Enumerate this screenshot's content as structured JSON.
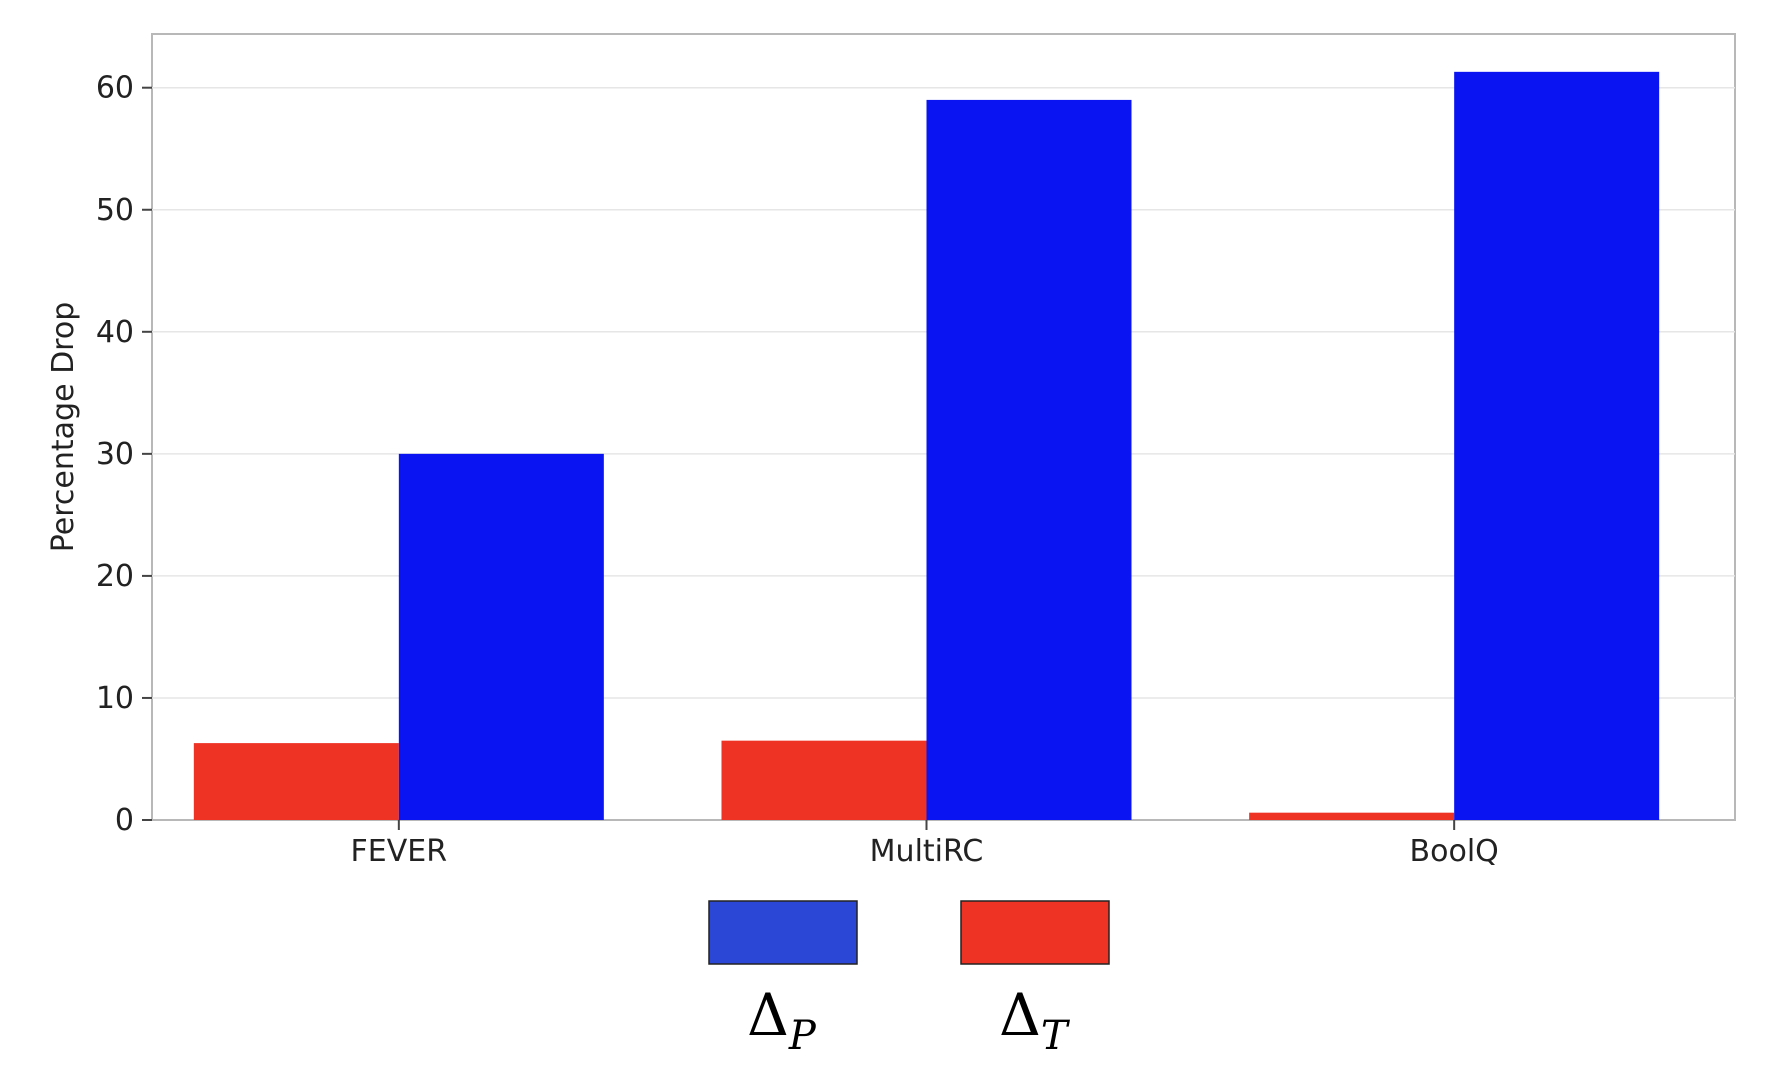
{
  "chart_data": {
    "type": "bar",
    "categories": [
      "FEVER",
      "MultiRC",
      "BoolQ"
    ],
    "series": [
      {
        "name_symbol": "Δ",
        "name_subscript": "T",
        "color": "#ee3224",
        "values": [
          6.3,
          6.5,
          0.6
        ]
      },
      {
        "name_symbol": "Δ",
        "name_subscript": "P",
        "color": "#0a14f2",
        "values": [
          30.0,
          59.0,
          61.3
        ]
      }
    ],
    "legend": [
      {
        "symbol": "Δ",
        "subscript": "P",
        "color": "#2a47d6"
      },
      {
        "symbol": "Δ",
        "subscript": "T",
        "color": "#ee3224"
      }
    ],
    "legend_placement": "bottom-center",
    "ylabel": "Percentage Drop",
    "xlabel": "",
    "ylim": [
      0,
      64.4
    ],
    "yticks": [
      0,
      10,
      20,
      30,
      40,
      50,
      60
    ],
    "grid": true
  }
}
